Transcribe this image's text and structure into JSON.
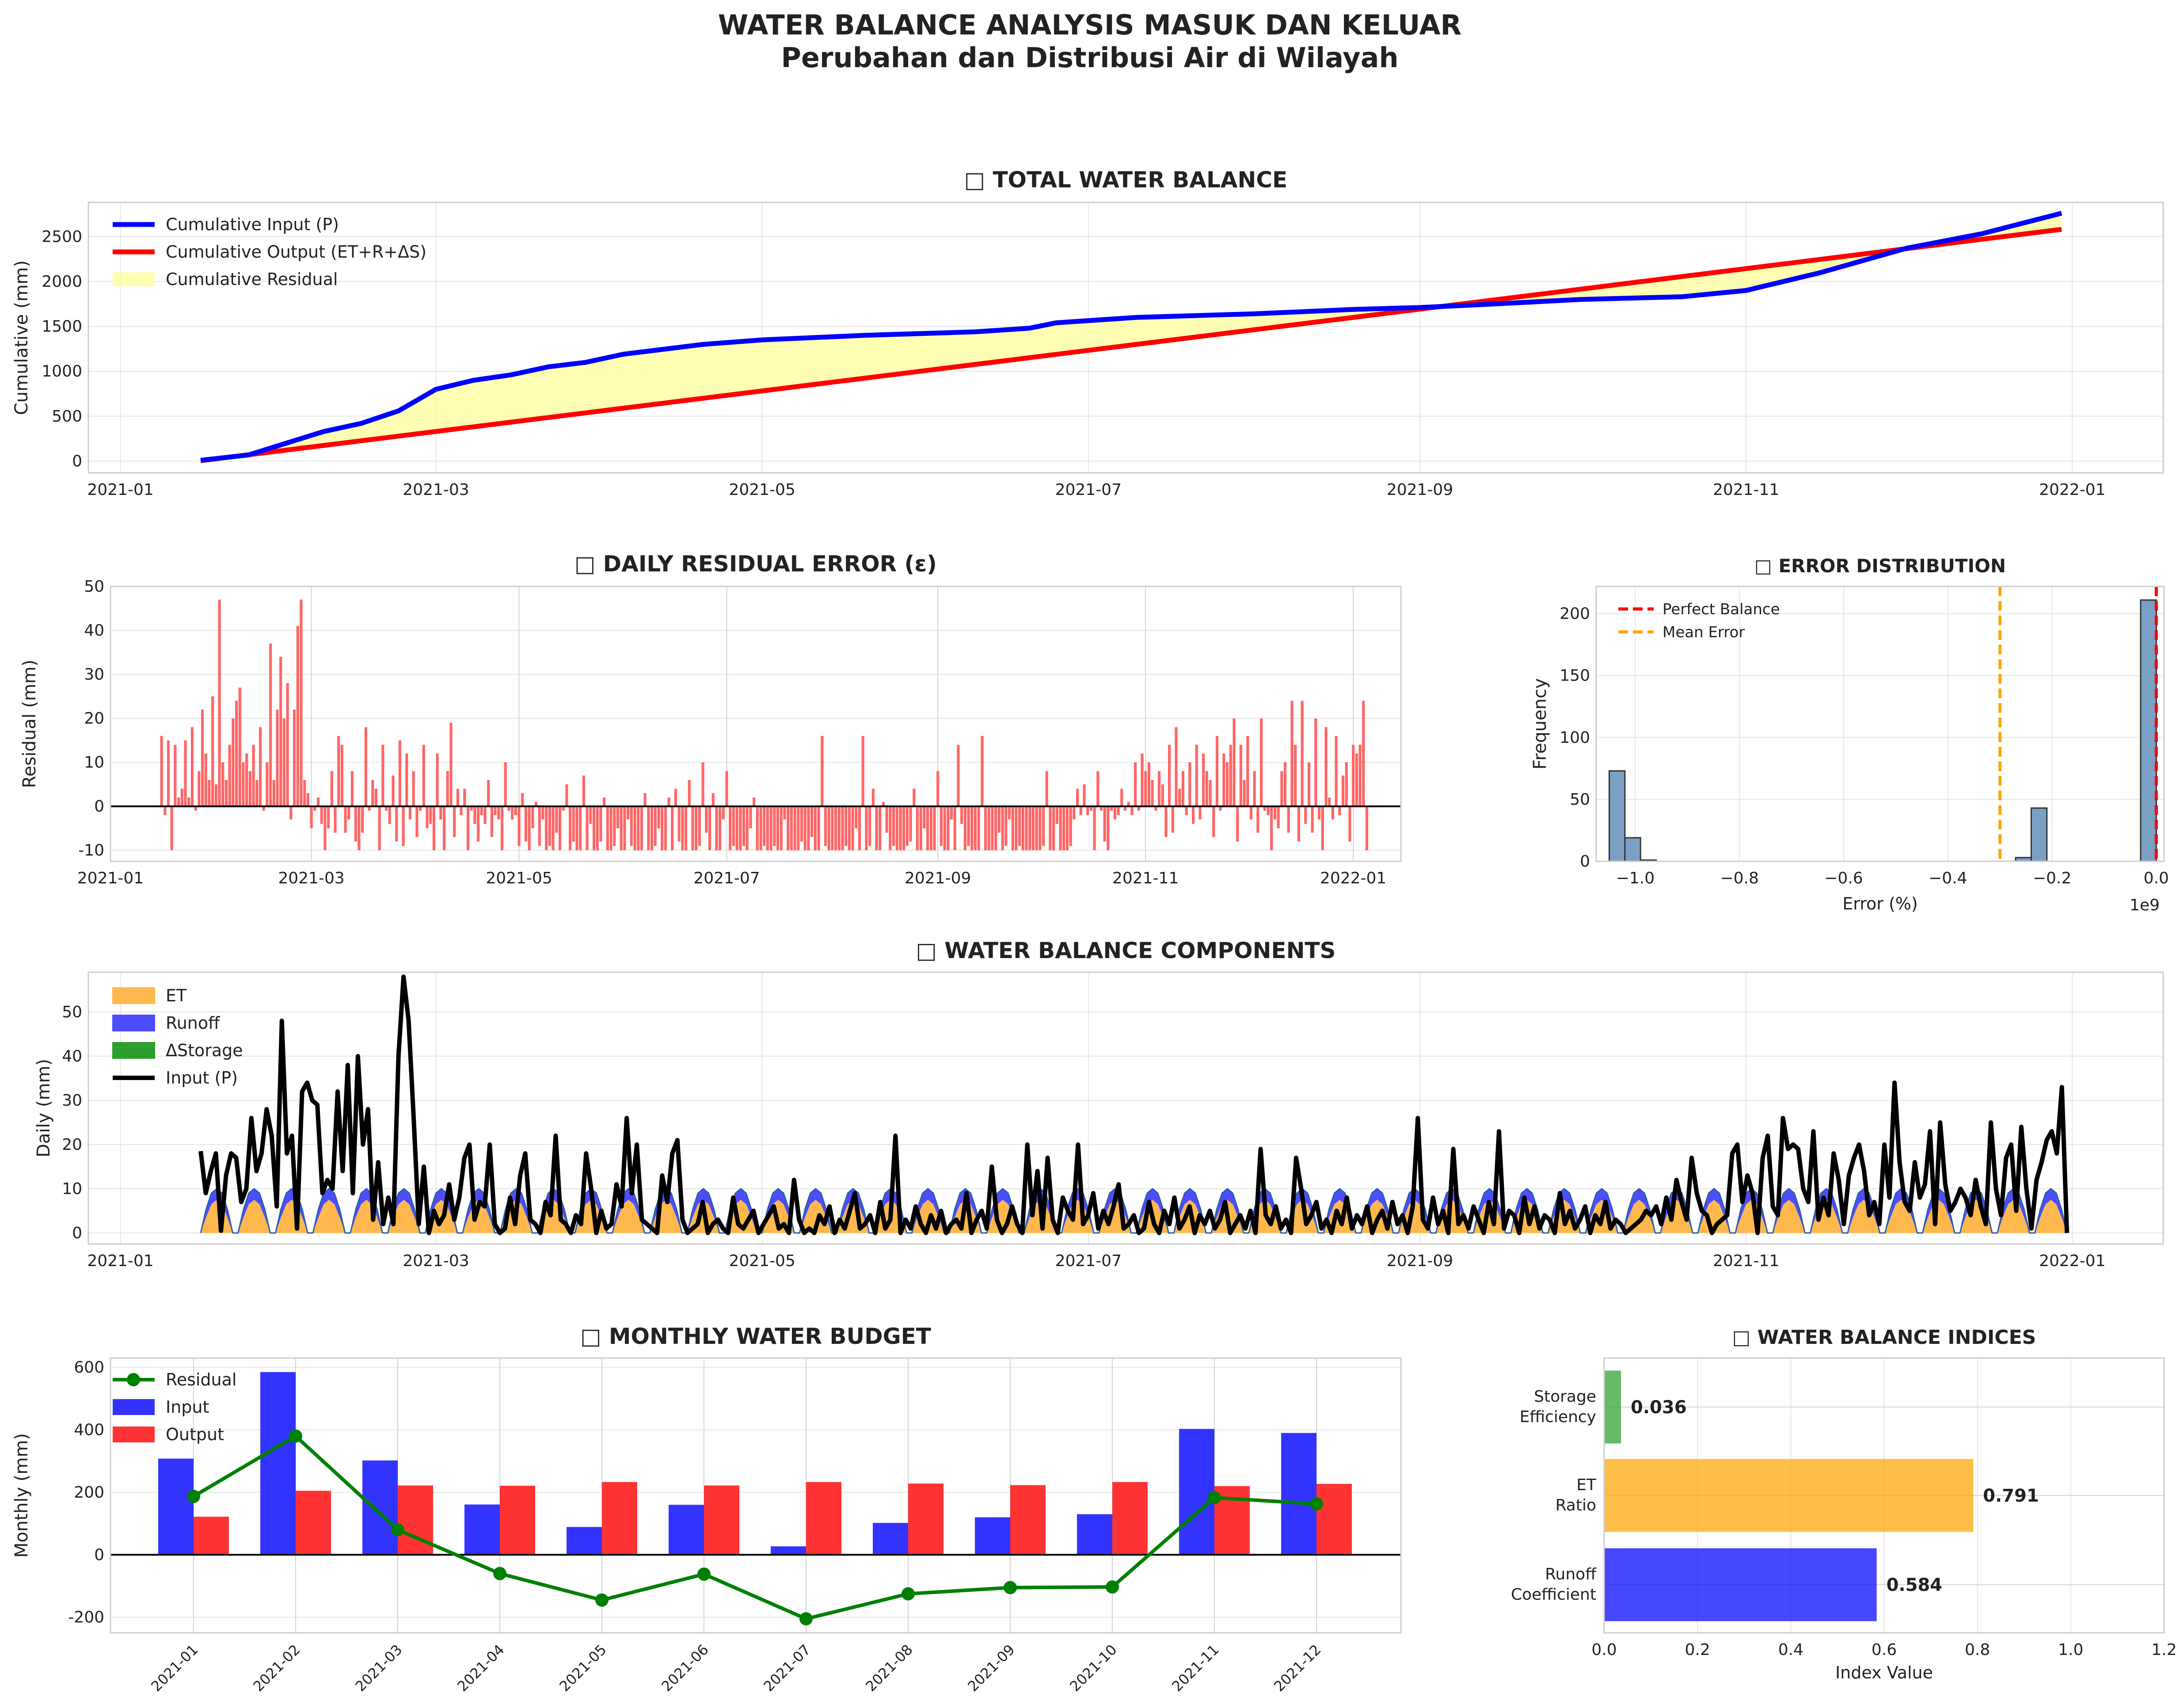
{
  "figure": {
    "title_line1": "WATER BALANCE ANALYSIS MASUK DAN KELUAR",
    "title_line2": "Perubahan dan Distribusi Air di Wilayah"
  },
  "chart_data": [
    {
      "id": "total",
      "type": "line",
      "title": "□ TOTAL WATER BALANCE",
      "xlabel": "",
      "ylabel": "Cumulative (mm)",
      "xlim": [
        "2020-12-26",
        "2022-01-18"
      ],
      "ylim": [
        -130,
        2880
      ],
      "xticks": [
        "2021-01",
        "2021-03",
        "2021-05",
        "2021-07",
        "2021-09",
        "2021-11",
        "2022-01"
      ],
      "yticks": [
        0,
        500,
        1000,
        1500,
        2000,
        2500
      ],
      "legend": [
        "Cumulative Input (P)",
        "Cumulative Output (ET+R+ΔS)",
        "Cumulative Residual"
      ],
      "input_points": [
        [
          "2021-01-16",
          10
        ],
        [
          "2021-01-25",
          70
        ],
        [
          "2021-02-01",
          200
        ],
        [
          "2021-02-08",
          330
        ],
        [
          "2021-02-15",
          420
        ],
        [
          "2021-02-22",
          560
        ],
        [
          "2021-03-01",
          800
        ],
        [
          "2021-03-08",
          900
        ],
        [
          "2021-03-15",
          960
        ],
        [
          "2021-03-22",
          1050
        ],
        [
          "2021-03-29",
          1100
        ],
        [
          "2021-04-05",
          1190
        ],
        [
          "2021-04-20",
          1300
        ],
        [
          "2021-05-01",
          1350
        ],
        [
          "2021-05-20",
          1400
        ],
        [
          "2021-06-10",
          1440
        ],
        [
          "2021-06-20",
          1480
        ],
        [
          "2021-06-25",
          1540
        ],
        [
          "2021-07-10",
          1600
        ],
        [
          "2021-08-01",
          1640
        ],
        [
          "2021-08-20",
          1690
        ],
        [
          "2021-09-01",
          1710
        ],
        [
          "2021-09-15",
          1750
        ],
        [
          "2021-10-01",
          1800
        ],
        [
          "2021-10-20",
          1830
        ],
        [
          "2021-11-01",
          1900
        ],
        [
          "2021-11-15",
          2100
        ],
        [
          "2021-12-01",
          2370
        ],
        [
          "2021-12-15",
          2530
        ],
        [
          "2021-12-30",
          2760
        ]
      ],
      "output_points": [
        [
          "2021-01-16",
          5
        ],
        [
          "2021-12-30",
          2580
        ]
      ]
    },
    {
      "id": "residual",
      "type": "bar",
      "title": "□ DAILY RESIDUAL ERROR (ε)",
      "xlabel": "",
      "ylabel": "Residual (mm)",
      "xlim": [
        "2021-01-01",
        "2022-01-15"
      ],
      "ylim": [
        -12.5,
        50
      ],
      "xticks": [
        "2021-01",
        "2021-03",
        "2021-05",
        "2021-07",
        "2021-09",
        "2021-11",
        "2022-01"
      ],
      "yticks": [
        -10,
        0,
        10,
        20,
        30,
        40,
        50
      ],
      "start": "2021-01-16",
      "values": [
        16,
        -2,
        15,
        -10,
        14,
        2,
        4,
        15,
        2,
        18,
        -1,
        8,
        22,
        12,
        6,
        25,
        5,
        47,
        10,
        6,
        14,
        20,
        24,
        27,
        10,
        12,
        8,
        14,
        6,
        18,
        -1,
        10,
        37,
        6,
        22,
        34,
        20,
        28,
        -3,
        22,
        41,
        47,
        6,
        3,
        -5,
        -1,
        2,
        -4,
        -10,
        -5,
        8,
        -6,
        16,
        14,
        -6,
        -3,
        8,
        -8,
        -10,
        -6,
        18,
        -1,
        6,
        4,
        -10,
        14,
        -1,
        -4,
        7,
        -8,
        15,
        -9,
        12,
        -3,
        8,
        -7,
        -1,
        14,
        -5,
        -4,
        -10,
        12,
        -3,
        -10,
        8,
        19,
        -7,
        4,
        -2,
        4,
        -10,
        -1,
        -4,
        -8,
        -2,
        -4,
        6,
        -7,
        -2,
        -3,
        -10,
        10,
        -1,
        -3,
        -2,
        -9,
        3,
        -8,
        -10,
        -5,
        1,
        -9,
        -3,
        -10,
        -9,
        -10,
        -6,
        -10,
        -1,
        5,
        -10,
        -8,
        -10,
        -10,
        7,
        -10,
        -4,
        -10,
        -10,
        -8,
        2,
        -10,
        -10,
        -9,
        -5,
        -10,
        -10,
        -3,
        -9,
        -10,
        -10,
        -10,
        3,
        -10,
        -10,
        -9,
        -5,
        -10,
        -10,
        2,
        -10,
        4,
        -8,
        -10,
        -10,
        6,
        -10,
        -10,
        -9,
        10,
        -6,
        -10,
        3,
        -10,
        -10,
        -3,
        8,
        -10,
        -9,
        -10,
        -10,
        -9,
        -10,
        -5,
        2,
        -10,
        -10,
        -9,
        -10,
        -10,
        -9,
        -10,
        -10,
        -3,
        -10,
        -10,
        -10,
        -10,
        -8,
        -10,
        -10,
        -7,
        -10,
        -10,
        16,
        -9,
        -10,
        -10,
        -10,
        -10,
        -10,
        -9,
        -10,
        -10,
        -5,
        -10,
        16,
        -10,
        -9,
        4,
        -10,
        -10,
        1,
        -6,
        -10,
        -9,
        -10,
        -10,
        -10,
        -9,
        -8,
        4,
        -10,
        -10,
        -5,
        -10,
        -10,
        -10,
        8,
        -9,
        -10,
        -10,
        -3,
        -10,
        14,
        -4,
        -10,
        -9,
        -10,
        -10,
        -10,
        16,
        -10,
        -10,
        -10,
        -10,
        -6,
        -10,
        -9,
        -3,
        -10,
        -10,
        -9,
        -10,
        -10,
        -10,
        -10,
        -10,
        -10,
        -9,
        8,
        -10,
        -10,
        -4,
        -10,
        -10,
        -10,
        -9,
        -3,
        4,
        -2,
        5,
        -2,
        -1,
        -10,
        8,
        -1,
        -8,
        -10,
        -1,
        -3,
        -2,
        4,
        -1,
        1,
        -2,
        10,
        -1,
        12,
        8,
        10,
        6,
        -1,
        8,
        5,
        -7,
        14,
        -6,
        18,
        4,
        8,
        -2,
        10,
        -4,
        14,
        -3,
        12,
        8,
        6,
        -7,
        16,
        -1,
        12,
        10,
        14,
        20,
        -8,
        14,
        6,
        16,
        -3,
        8,
        -6,
        20,
        -1,
        -2,
        -10,
        -3,
        -5,
        8,
        10,
        -6,
        24,
        14,
        -8,
        24,
        -4,
        10,
        -6,
        20,
        -3,
        -10,
        18,
        2,
        -3,
        16,
        -2,
        7,
        10,
        -8,
        14,
        12,
        14,
        24,
        -10
      ],
      "baseline": 0
    },
    {
      "id": "error",
      "type": "bar",
      "title": "□ ERROR DISTRIBUTION",
      "xlabel": "Error (%)",
      "ylabel": "Frequency",
      "xlim": [
        -1.075,
        0.015
      ],
      "ylim": [
        0,
        222
      ],
      "offset_text": "1e9",
      "xticks": [
        -1.0,
        -0.8,
        -0.6,
        -0.4,
        -0.2,
        0.0
      ],
      "xtick_labels": [
        "−1.0",
        "−0.8",
        "−0.6",
        "−0.4",
        "−0.2",
        "0.0"
      ],
      "yticks": [
        0,
        50,
        100,
        150,
        200
      ],
      "bins": [
        [
          -1.05,
          -1.02,
          73
        ],
        [
          -1.02,
          -0.99,
          19
        ],
        [
          -0.99,
          -0.96,
          1
        ],
        [
          -0.27,
          -0.24,
          3
        ],
        [
          -0.24,
          -0.21,
          43
        ],
        [
          -0.03,
          0.0,
          211
        ]
      ],
      "perfect_balance": 0,
      "mean_error": -0.3,
      "legend": [
        "Perfect Balance",
        "Mean Error"
      ]
    },
    {
      "id": "components",
      "type": "area",
      "title": "□ WATER BALANCE COMPONENTS",
      "xlabel": "",
      "ylabel": "Daily (mm)",
      "xlim": [
        "2020-12-26",
        "2022-01-18"
      ],
      "ylim": [
        -2.5,
        59
      ],
      "xticks": [
        "2021-01",
        "2021-03",
        "2021-05",
        "2021-07",
        "2021-09",
        "2021-11",
        "2022-01"
      ],
      "yticks": [
        0,
        10,
        20,
        30,
        40,
        50
      ],
      "legend": [
        "ET",
        "Runoff",
        "ΔStorage",
        "Input (P)"
      ],
      "start": "2021-01-16",
      "et_cycle": [
        0,
        3.5,
        6.5,
        7.5,
        6.5,
        3.5,
        0
      ],
      "runoff_cycle": [
        0,
        1.8,
        2.5,
        2.5,
        2.5,
        1.8,
        0
      ],
      "input_p": [
        18.5,
        9,
        14,
        18,
        0.5,
        13,
        18,
        17,
        7,
        10,
        26,
        14,
        18,
        28,
        22,
        6,
        48,
        18,
        22,
        1,
        32,
        34,
        30,
        29,
        9,
        12,
        10,
        32,
        14,
        38,
        9,
        40,
        20,
        28,
        3,
        16,
        2,
        8,
        2,
        40,
        58,
        48,
        26,
        2,
        15,
        0,
        5,
        2,
        4,
        11,
        3,
        8,
        17,
        20,
        3,
        7,
        6,
        20,
        2,
        0,
        1,
        8,
        2,
        13,
        18,
        3,
        2,
        0,
        7,
        4,
        22,
        3,
        2,
        0,
        4,
        2,
        18,
        10,
        0,
        5,
        1,
        2,
        11,
        6,
        26,
        9,
        20,
        3,
        2,
        1,
        0,
        13,
        7,
        18,
        21,
        3,
        0,
        1,
        2,
        7,
        0,
        2,
        3,
        1,
        0,
        8,
        2,
        1,
        3,
        5,
        0,
        2,
        4,
        6,
        1,
        2,
        0,
        12,
        3,
        0,
        1,
        0,
        4,
        2,
        6,
        0,
        3,
        1,
        5,
        9,
        1,
        2,
        4,
        0,
        7,
        1,
        3,
        22,
        0,
        3,
        1,
        6,
        2,
        0,
        4,
        1,
        5,
        0,
        2,
        3,
        1,
        9,
        0,
        3,
        5,
        1,
        15,
        3,
        0,
        2,
        6,
        2,
        0,
        20,
        4,
        14,
        1,
        17,
        3,
        0,
        8,
        5,
        3,
        20,
        2,
        4,
        9,
        1,
        5,
        2,
        6,
        11,
        1,
        2,
        4,
        0,
        1,
        7,
        2,
        0,
        5,
        2,
        8,
        1,
        3,
        6,
        0,
        4,
        2,
        5,
        1,
        3,
        7,
        0,
        2,
        4,
        1,
        5,
        0,
        19,
        4,
        2,
        6,
        1,
        3,
        0,
        17,
        10,
        2,
        4,
        7,
        1,
        3,
        0,
        5,
        2,
        8,
        1,
        4,
        2,
        6,
        0,
        3,
        5,
        1,
        7,
        2,
        4,
        0,
        6,
        26,
        3,
        1,
        8,
        2,
        5,
        0,
        19,
        2,
        4,
        1,
        6,
        3,
        0,
        7,
        2,
        23,
        1,
        5,
        4,
        0,
        8,
        2,
        6,
        1,
        4,
        3,
        0,
        9,
        2,
        5,
        1,
        3,
        6,
        0,
        4,
        2,
        7,
        1,
        3,
        2,
        0,
        1,
        2,
        3,
        5,
        4,
        6,
        2,
        8,
        3,
        12,
        7,
        3,
        17,
        9,
        5,
        4,
        0,
        2,
        3,
        4,
        18,
        20,
        7,
        13,
        9,
        0,
        17,
        22,
        6,
        4,
        26,
        19,
        20,
        19,
        10,
        7,
        23,
        3,
        8,
        4,
        18,
        12,
        2,
        13,
        17,
        20,
        14,
        4,
        7,
        2,
        20,
        8,
        34,
        16,
        7,
        5,
        16,
        8,
        11,
        23,
        2,
        25,
        11,
        5,
        7,
        10,
        8,
        4,
        12,
        6,
        2,
        25,
        10,
        4,
        17,
        20,
        5,
        24,
        10,
        1,
        12,
        16,
        21,
        23,
        18,
        33,
        0
      ],
      "input_end": "2021-12-31"
    },
    {
      "id": "monthly",
      "type": "bar",
      "title": "□ MONTHLY WATER BUDGET",
      "xlabel": "",
      "ylabel": "Monthly (mm)",
      "ylim": [
        -250,
        630
      ],
      "yticks": [
        -200,
        0,
        200,
        400,
        600
      ],
      "categories": [
        "2021-01",
        "2021-02",
        "2021-03",
        "2021-04",
        "2021-05",
        "2021-06",
        "2021-07",
        "2021-08",
        "2021-09",
        "2021-10",
        "2021-11",
        "2021-12"
      ],
      "series": [
        {
          "name": "Input",
          "values": [
            308,
            585,
            302,
            161,
            89,
            160,
            27,
            102,
            120,
            130,
            403,
            390
          ]
        },
        {
          "name": "Output",
          "values": [
            122,
            205,
            222,
            221,
            233,
            222,
            233,
            228,
            223,
            233,
            220,
            227
          ]
        },
        {
          "name": "Residual",
          "values": [
            187,
            380,
            80,
            -60,
            -145,
            -62,
            -205,
            -125,
            -105,
            -103,
            183,
            163
          ]
        }
      ],
      "legend": [
        "Residual",
        "Input",
        "Output"
      ]
    },
    {
      "id": "indices",
      "type": "bar",
      "title": "□ WATER BALANCE INDICES",
      "xlabel": "Index Value",
      "ylabel": "",
      "xlim": [
        0,
        1.2
      ],
      "xticks": [
        0.0,
        0.2,
        0.4,
        0.6,
        0.8,
        1.0,
        1.2
      ],
      "categories": [
        [
          "Storage",
          "Efficiency"
        ],
        [
          "ET",
          "Ratio"
        ],
        [
          "Runoff",
          "Coefficient"
        ]
      ],
      "values": [
        0.036,
        0.791,
        0.584
      ],
      "value_labels": [
        "0.036",
        "0.791",
        "0.584"
      ],
      "colors": [
        "#2ca02c",
        "#ffa500",
        "#0000ff"
      ]
    }
  ],
  "colors": {
    "input": "#0000ff",
    "output": "#ff0000",
    "residual_fill": "#ffff99",
    "residual_bar": "#ff6666",
    "et": "#ffb84d",
    "runoff": "#4d4dff",
    "storage": "#2e9e2e",
    "hist": "#7aa0c4",
    "mean": "#ffa500",
    "monthly_residual": "#008000",
    "grid": "#e6e6e6",
    "spine": "#cccccc",
    "text": "#222222"
  }
}
